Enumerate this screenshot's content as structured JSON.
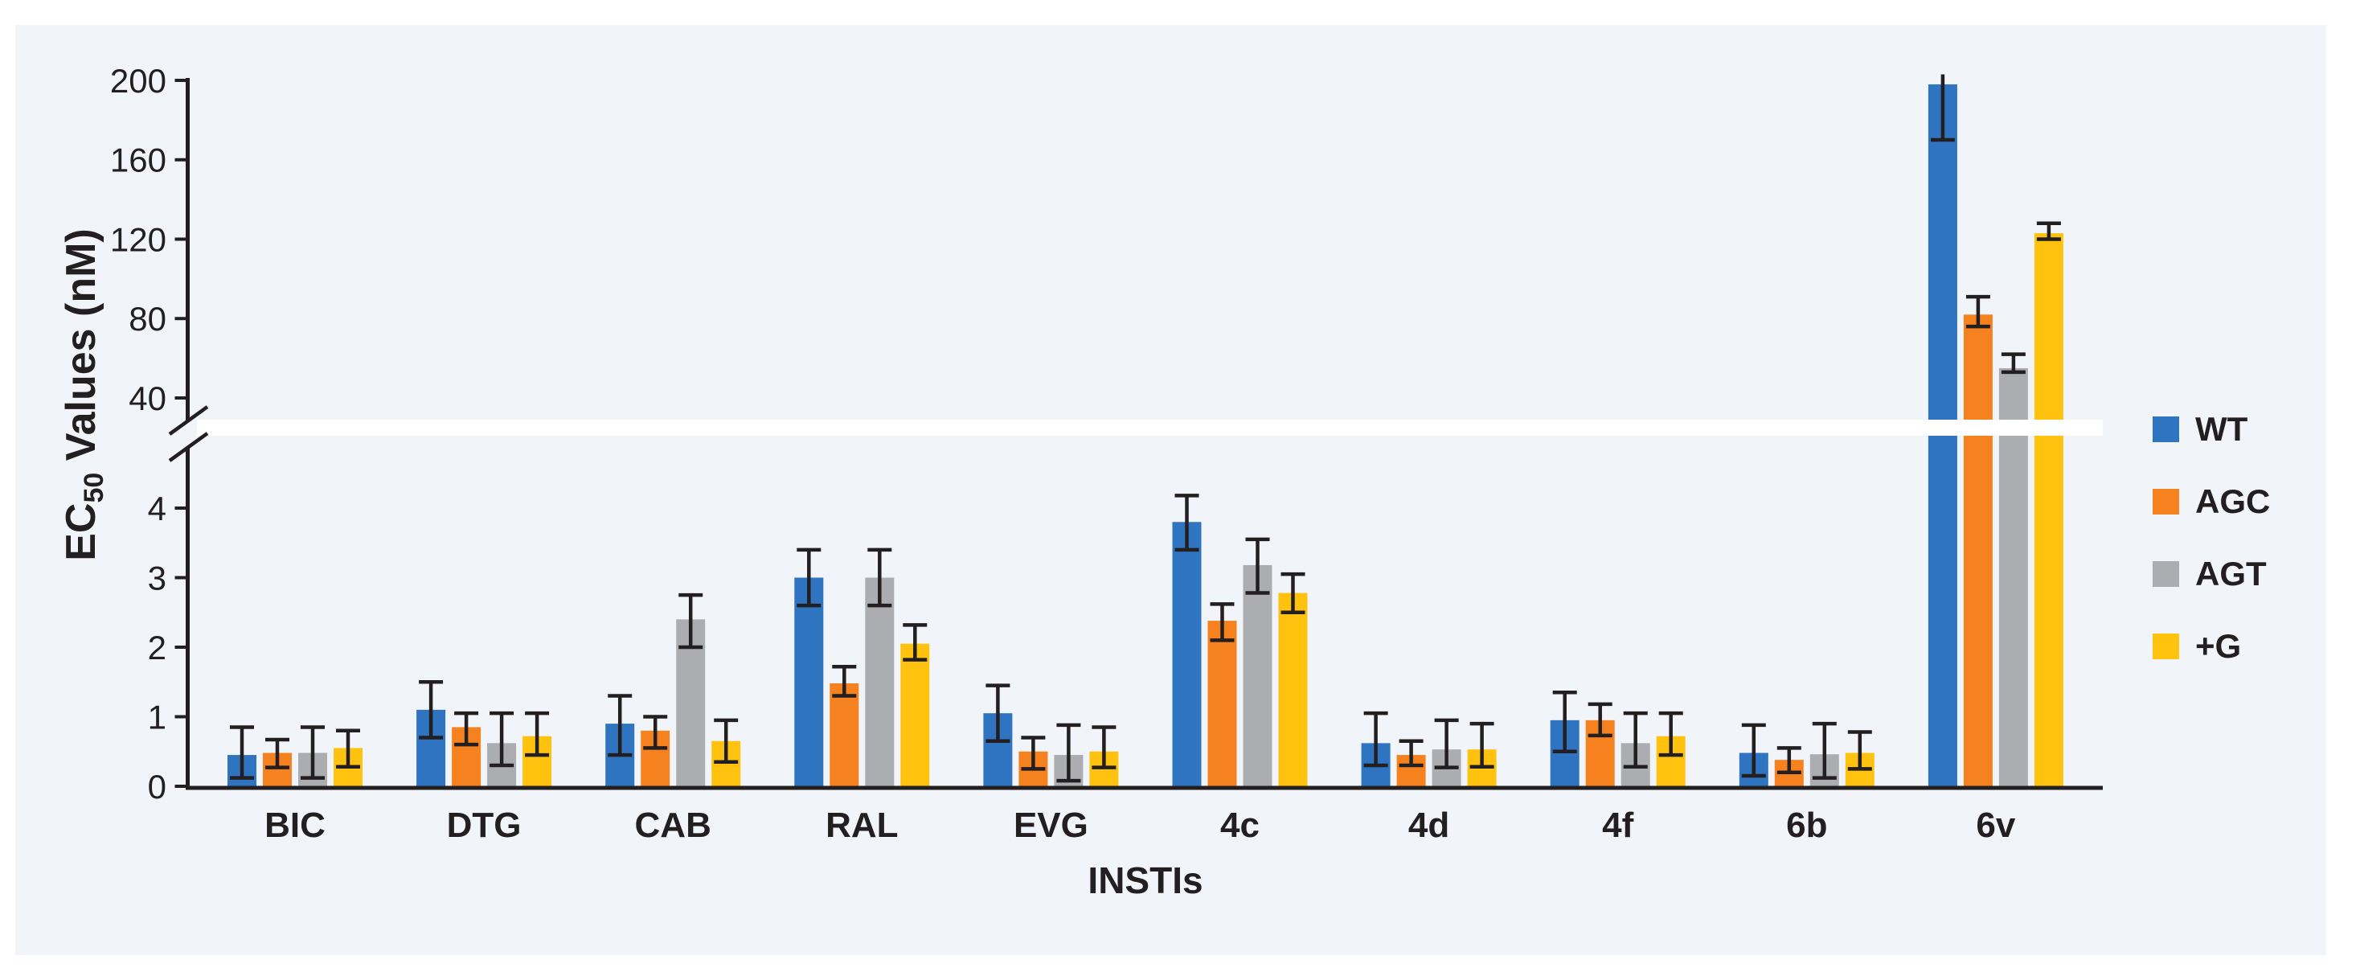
{
  "figure": {
    "page_background": "#ffffff",
    "panel_background": "#f1f5f9",
    "axis_color": "#231f20",
    "text_color": "#231f20",
    "break_band_color": "#ffffff"
  },
  "chart_data": {
    "type": "bar",
    "title": "",
    "xlabel": "INSTIs",
    "ylabel": "EC50 Values (nM)",
    "ylabel_parts": {
      "prefix": "EC",
      "sub": "50",
      "suffix": " Values (nM)"
    },
    "grid": false,
    "legend_position": "right",
    "axis_break": {
      "enabled": true,
      "lower_range": [
        0,
        4
      ],
      "upper_range": [
        40,
        200
      ]
    },
    "y_ticks_upper": [
      200,
      160,
      120,
      80,
      40
    ],
    "y_ticks_lower": [
      4,
      3,
      2,
      1,
      0
    ],
    "categories": [
      "BIC",
      "DTG",
      "CAB",
      "RAL",
      "EVG",
      "4c",
      "4d",
      "4f",
      "6b",
      "6v"
    ],
    "series": [
      {
        "name": "WT",
        "color": "#2e74c0",
        "values": [
          0.45,
          1.1,
          0.9,
          3.0,
          1.05,
          3.8,
          0.62,
          0.95,
          0.48,
          198
        ],
        "err_low": [
          0.12,
          0.7,
          0.45,
          2.6,
          0.65,
          3.4,
          0.3,
          0.5,
          0.15,
          170
        ],
        "err_high": [
          0.85,
          1.5,
          1.3,
          3.4,
          1.45,
          4.18,
          1.05,
          1.35,
          0.88,
          203
        ]
      },
      {
        "name": "AGC",
        "color": "#f5821f",
        "values": [
          0.48,
          0.85,
          0.8,
          1.48,
          0.5,
          2.38,
          0.45,
          0.95,
          0.38,
          82
        ],
        "err_low": [
          0.27,
          0.6,
          0.55,
          1.3,
          0.25,
          2.1,
          0.3,
          0.73,
          0.2,
          76
        ],
        "err_high": [
          0.67,
          1.05,
          1.0,
          1.72,
          0.7,
          2.62,
          0.65,
          1.18,
          0.55,
          91
        ]
      },
      {
        "name": "AGT",
        "color": "#abadb0",
        "values": [
          0.48,
          0.62,
          2.4,
          3.0,
          0.45,
          3.18,
          0.53,
          0.62,
          0.46,
          55
        ],
        "err_low": [
          0.12,
          0.3,
          2.0,
          2.6,
          0.08,
          2.78,
          0.27,
          0.28,
          0.12,
          53
        ],
        "err_high": [
          0.85,
          1.05,
          2.75,
          3.4,
          0.88,
          3.55,
          0.95,
          1.05,
          0.9,
          62
        ]
      },
      {
        "name": "+G",
        "color": "#ffc20e",
        "values": [
          0.55,
          0.72,
          0.65,
          2.05,
          0.5,
          2.78,
          0.53,
          0.72,
          0.48,
          123
        ],
        "err_low": [
          0.28,
          0.45,
          0.35,
          1.82,
          0.27,
          2.5,
          0.28,
          0.45,
          0.25,
          120
        ],
        "err_high": [
          0.8,
          1.05,
          0.95,
          2.32,
          0.85,
          3.05,
          0.9,
          1.05,
          0.78,
          128
        ]
      }
    ]
  }
}
